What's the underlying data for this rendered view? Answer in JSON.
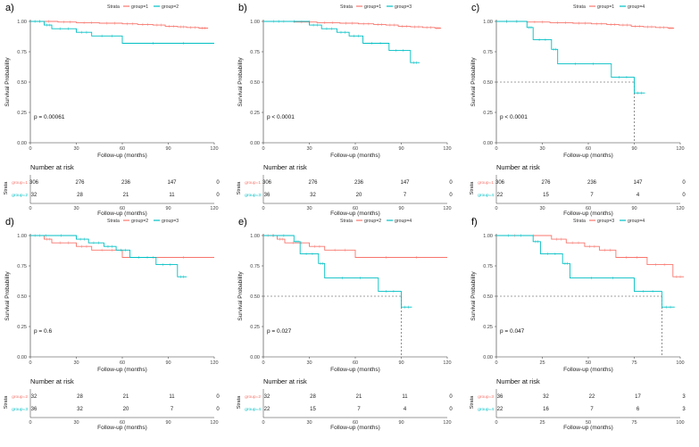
{
  "colors": {
    "group_a": "#F8766D",
    "group_b": "#00BFC4",
    "axis": "#333333",
    "median_line": "#444444"
  },
  "common": {
    "ylabel": "Survival Probability",
    "xlabel": "Follow-up (months)",
    "strata_legend_title": "Strata",
    "risk_title": "Number at risk",
    "risk_ylabel": "Strata",
    "y_ticks": [
      "0.00",
      "0.25",
      "0.50",
      "0.75",
      "1.00"
    ]
  },
  "chart_data": [
    {
      "panel": "a)",
      "type": "line",
      "xlim": [
        0,
        120
      ],
      "ylim": [
        0,
        1
      ],
      "x_ticks": [
        0,
        30,
        60,
        90,
        120
      ],
      "p_value": "p = 0.00061",
      "median_line": null,
      "series": [
        {
          "name": "group=1",
          "color_key": "group_a",
          "steps": [
            [
              0,
              1.0
            ],
            [
              18,
              0.995
            ],
            [
              30,
              0.99
            ],
            [
              45,
              0.985
            ],
            [
              60,
              0.98
            ],
            [
              70,
              0.975
            ],
            [
              80,
              0.97
            ],
            [
              88,
              0.96
            ],
            [
              96,
              0.955
            ],
            [
              102,
              0.95
            ],
            [
              110,
              0.945
            ],
            [
              116,
              0.945
            ]
          ]
        },
        {
          "name": "group=2",
          "color_key": "group_b",
          "steps": [
            [
              0,
              1.0
            ],
            [
              9,
              0.97
            ],
            [
              14,
              0.94
            ],
            [
              30,
              0.91
            ],
            [
              40,
              0.88
            ],
            [
              60,
              0.82
            ],
            [
              120,
              0.82
            ]
          ]
        }
      ],
      "risk": {
        "rows": [
          {
            "label": "group=1",
            "color_key": "group_a",
            "values": [
              "306",
              "276",
              "236",
              "147",
              "0"
            ]
          },
          {
            "label": "group=2",
            "color_key": "group_b",
            "values": [
              "32",
              "28",
              "21",
              "11",
              "0"
            ]
          }
        ],
        "ticks": [
          "0",
          "30",
          "60",
          "90",
          "120"
        ]
      }
    },
    {
      "panel": "b)",
      "type": "line",
      "xlim": [
        0,
        120
      ],
      "ylim": [
        0,
        1
      ],
      "x_ticks": [
        0,
        30,
        60,
        90,
        120
      ],
      "p_value": "p < 0.0001",
      "median_line": null,
      "series": [
        {
          "name": "group=1",
          "color_key": "group_a",
          "steps": [
            [
              0,
              1.0
            ],
            [
              20,
              0.995
            ],
            [
              35,
              0.99
            ],
            [
              50,
              0.985
            ],
            [
              62,
              0.98
            ],
            [
              72,
              0.975
            ],
            [
              80,
              0.97
            ],
            [
              88,
              0.96
            ],
            [
              96,
              0.955
            ],
            [
              104,
              0.95
            ],
            [
              112,
              0.945
            ],
            [
              116,
              0.945
            ]
          ]
        },
        {
          "name": "group=3",
          "color_key": "group_b",
          "steps": [
            [
              0,
              1.0
            ],
            [
              30,
              0.97
            ],
            [
              38,
              0.94
            ],
            [
              48,
              0.91
            ],
            [
              56,
              0.88
            ],
            [
              65,
              0.82
            ],
            [
              82,
              0.76
            ],
            [
              96,
              0.66
            ],
            [
              102,
              0.66
            ]
          ]
        }
      ],
      "risk": {
        "rows": [
          {
            "label": "group=1",
            "color_key": "group_a",
            "values": [
              "306",
              "276",
              "236",
              "147",
              "0"
            ]
          },
          {
            "label": "group=3",
            "color_key": "group_b",
            "values": [
              "36",
              "32",
              "20",
              "7",
              "0"
            ]
          }
        ],
        "ticks": [
          "0",
          "30",
          "60",
          "90",
          "120"
        ]
      }
    },
    {
      "panel": "c)",
      "type": "line",
      "xlim": [
        0,
        120
      ],
      "ylim": [
        0,
        1
      ],
      "x_ticks": [
        0,
        30,
        60,
        90,
        120
      ],
      "p_value": "p < 0.0001",
      "median_line": {
        "x": 90,
        "y": 0.5
      },
      "series": [
        {
          "name": "group=1",
          "color_key": "group_a",
          "steps": [
            [
              0,
              1.0
            ],
            [
              20,
              0.995
            ],
            [
              35,
              0.99
            ],
            [
              50,
              0.985
            ],
            [
              62,
              0.98
            ],
            [
              72,
              0.975
            ],
            [
              80,
              0.97
            ],
            [
              88,
              0.96
            ],
            [
              96,
              0.955
            ],
            [
              104,
              0.95
            ],
            [
              112,
              0.945
            ],
            [
              116,
              0.945
            ]
          ]
        },
        {
          "name": "group=4",
          "color_key": "group_b",
          "steps": [
            [
              0,
              1.0
            ],
            [
              20,
              0.95
            ],
            [
              24,
              0.85
            ],
            [
              36,
              0.77
            ],
            [
              40,
              0.65
            ],
            [
              75,
              0.54
            ],
            [
              90,
              0.41
            ],
            [
              97,
              0.41
            ]
          ]
        }
      ],
      "risk": {
        "rows": [
          {
            "label": "group=1",
            "color_key": "group_a",
            "values": [
              "306",
              "276",
              "236",
              "147",
              "0"
            ]
          },
          {
            "label": "group=4",
            "color_key": "group_b",
            "values": [
              "22",
              "15",
              "7",
              "4",
              "0"
            ]
          }
        ],
        "ticks": [
          "0",
          "30",
          "60",
          "90",
          "120"
        ]
      }
    },
    {
      "panel": "d)",
      "type": "line",
      "xlim": [
        0,
        120
      ],
      "ylim": [
        0,
        1
      ],
      "x_ticks": [
        0,
        30,
        60,
        90,
        120
      ],
      "p_value": "p = 0.6",
      "median_line": null,
      "series": [
        {
          "name": "group=2",
          "color_key": "group_a",
          "steps": [
            [
              0,
              1.0
            ],
            [
              9,
              0.97
            ],
            [
              14,
              0.94
            ],
            [
              30,
              0.91
            ],
            [
              40,
              0.88
            ],
            [
              60,
              0.82
            ],
            [
              120,
              0.82
            ]
          ]
        },
        {
          "name": "group=3",
          "color_key": "group_b",
          "steps": [
            [
              0,
              1.0
            ],
            [
              30,
              0.97
            ],
            [
              38,
              0.94
            ],
            [
              48,
              0.91
            ],
            [
              56,
              0.88
            ],
            [
              65,
              0.82
            ],
            [
              82,
              0.76
            ],
            [
              96,
              0.66
            ],
            [
              102,
              0.66
            ]
          ]
        }
      ],
      "risk": {
        "rows": [
          {
            "label": "group=2",
            "color_key": "group_a",
            "values": [
              "32",
              "28",
              "21",
              "11",
              "0"
            ]
          },
          {
            "label": "group=3",
            "color_key": "group_b",
            "values": [
              "36",
              "32",
              "20",
              "7",
              "0"
            ]
          }
        ],
        "ticks": [
          "0",
          "30",
          "60",
          "90",
          "120"
        ]
      }
    },
    {
      "panel": "e)",
      "type": "line",
      "xlim": [
        0,
        120
      ],
      "ylim": [
        0,
        1
      ],
      "x_ticks": [
        0,
        30,
        60,
        90,
        120
      ],
      "p_value": "p = 0.027",
      "median_line": {
        "x": 90,
        "y": 0.5
      },
      "series": [
        {
          "name": "group=2",
          "color_key": "group_a",
          "steps": [
            [
              0,
              1.0
            ],
            [
              9,
              0.97
            ],
            [
              14,
              0.94
            ],
            [
              30,
              0.91
            ],
            [
              40,
              0.88
            ],
            [
              60,
              0.82
            ],
            [
              120,
              0.82
            ]
          ]
        },
        {
          "name": "group=4",
          "color_key": "group_b",
          "steps": [
            [
              0,
              1.0
            ],
            [
              20,
              0.95
            ],
            [
              24,
              0.85
            ],
            [
              36,
              0.77
            ],
            [
              40,
              0.65
            ],
            [
              75,
              0.54
            ],
            [
              90,
              0.41
            ],
            [
              97,
              0.41
            ]
          ]
        }
      ],
      "risk": {
        "rows": [
          {
            "label": "group=2",
            "color_key": "group_a",
            "values": [
              "32",
              "28",
              "21",
              "11",
              "0"
            ]
          },
          {
            "label": "group=4",
            "color_key": "group_b",
            "values": [
              "22",
              "15",
              "7",
              "4",
              "0"
            ]
          }
        ],
        "ticks": [
          "0",
          "30",
          "60",
          "90",
          "120"
        ]
      }
    },
    {
      "panel": "f)",
      "type": "line",
      "xlim": [
        0,
        100
      ],
      "ylim": [
        0,
        1
      ],
      "x_ticks": [
        0,
        25,
        50,
        75,
        100
      ],
      "p_value": "p = 0.047",
      "median_line": {
        "x": 90,
        "y": 0.5
      },
      "series": [
        {
          "name": "group=3",
          "color_key": "group_a",
          "steps": [
            [
              0,
              1.0
            ],
            [
              30,
              0.97
            ],
            [
              38,
              0.94
            ],
            [
              48,
              0.91
            ],
            [
              56,
              0.88
            ],
            [
              65,
              0.82
            ],
            [
              82,
              0.76
            ],
            [
              96,
              0.66
            ],
            [
              102,
              0.66
            ]
          ]
        },
        {
          "name": "group=4",
          "color_key": "group_b",
          "steps": [
            [
              0,
              1.0
            ],
            [
              20,
              0.95
            ],
            [
              24,
              0.85
            ],
            [
              36,
              0.77
            ],
            [
              40,
              0.65
            ],
            [
              75,
              0.54
            ],
            [
              90,
              0.41
            ],
            [
              97,
              0.41
            ]
          ]
        }
      ],
      "risk": {
        "rows": [
          {
            "label": "group=3",
            "color_key": "group_a",
            "values": [
              "36",
              "32",
              "22",
              "17",
              "3"
            ]
          },
          {
            "label": "group=4",
            "color_key": "group_b",
            "values": [
              "22",
              "16",
              "7",
              "6",
              "3"
            ]
          }
        ],
        "ticks": [
          "0",
          "25",
          "50",
          "75",
          "100"
        ]
      }
    }
  ]
}
